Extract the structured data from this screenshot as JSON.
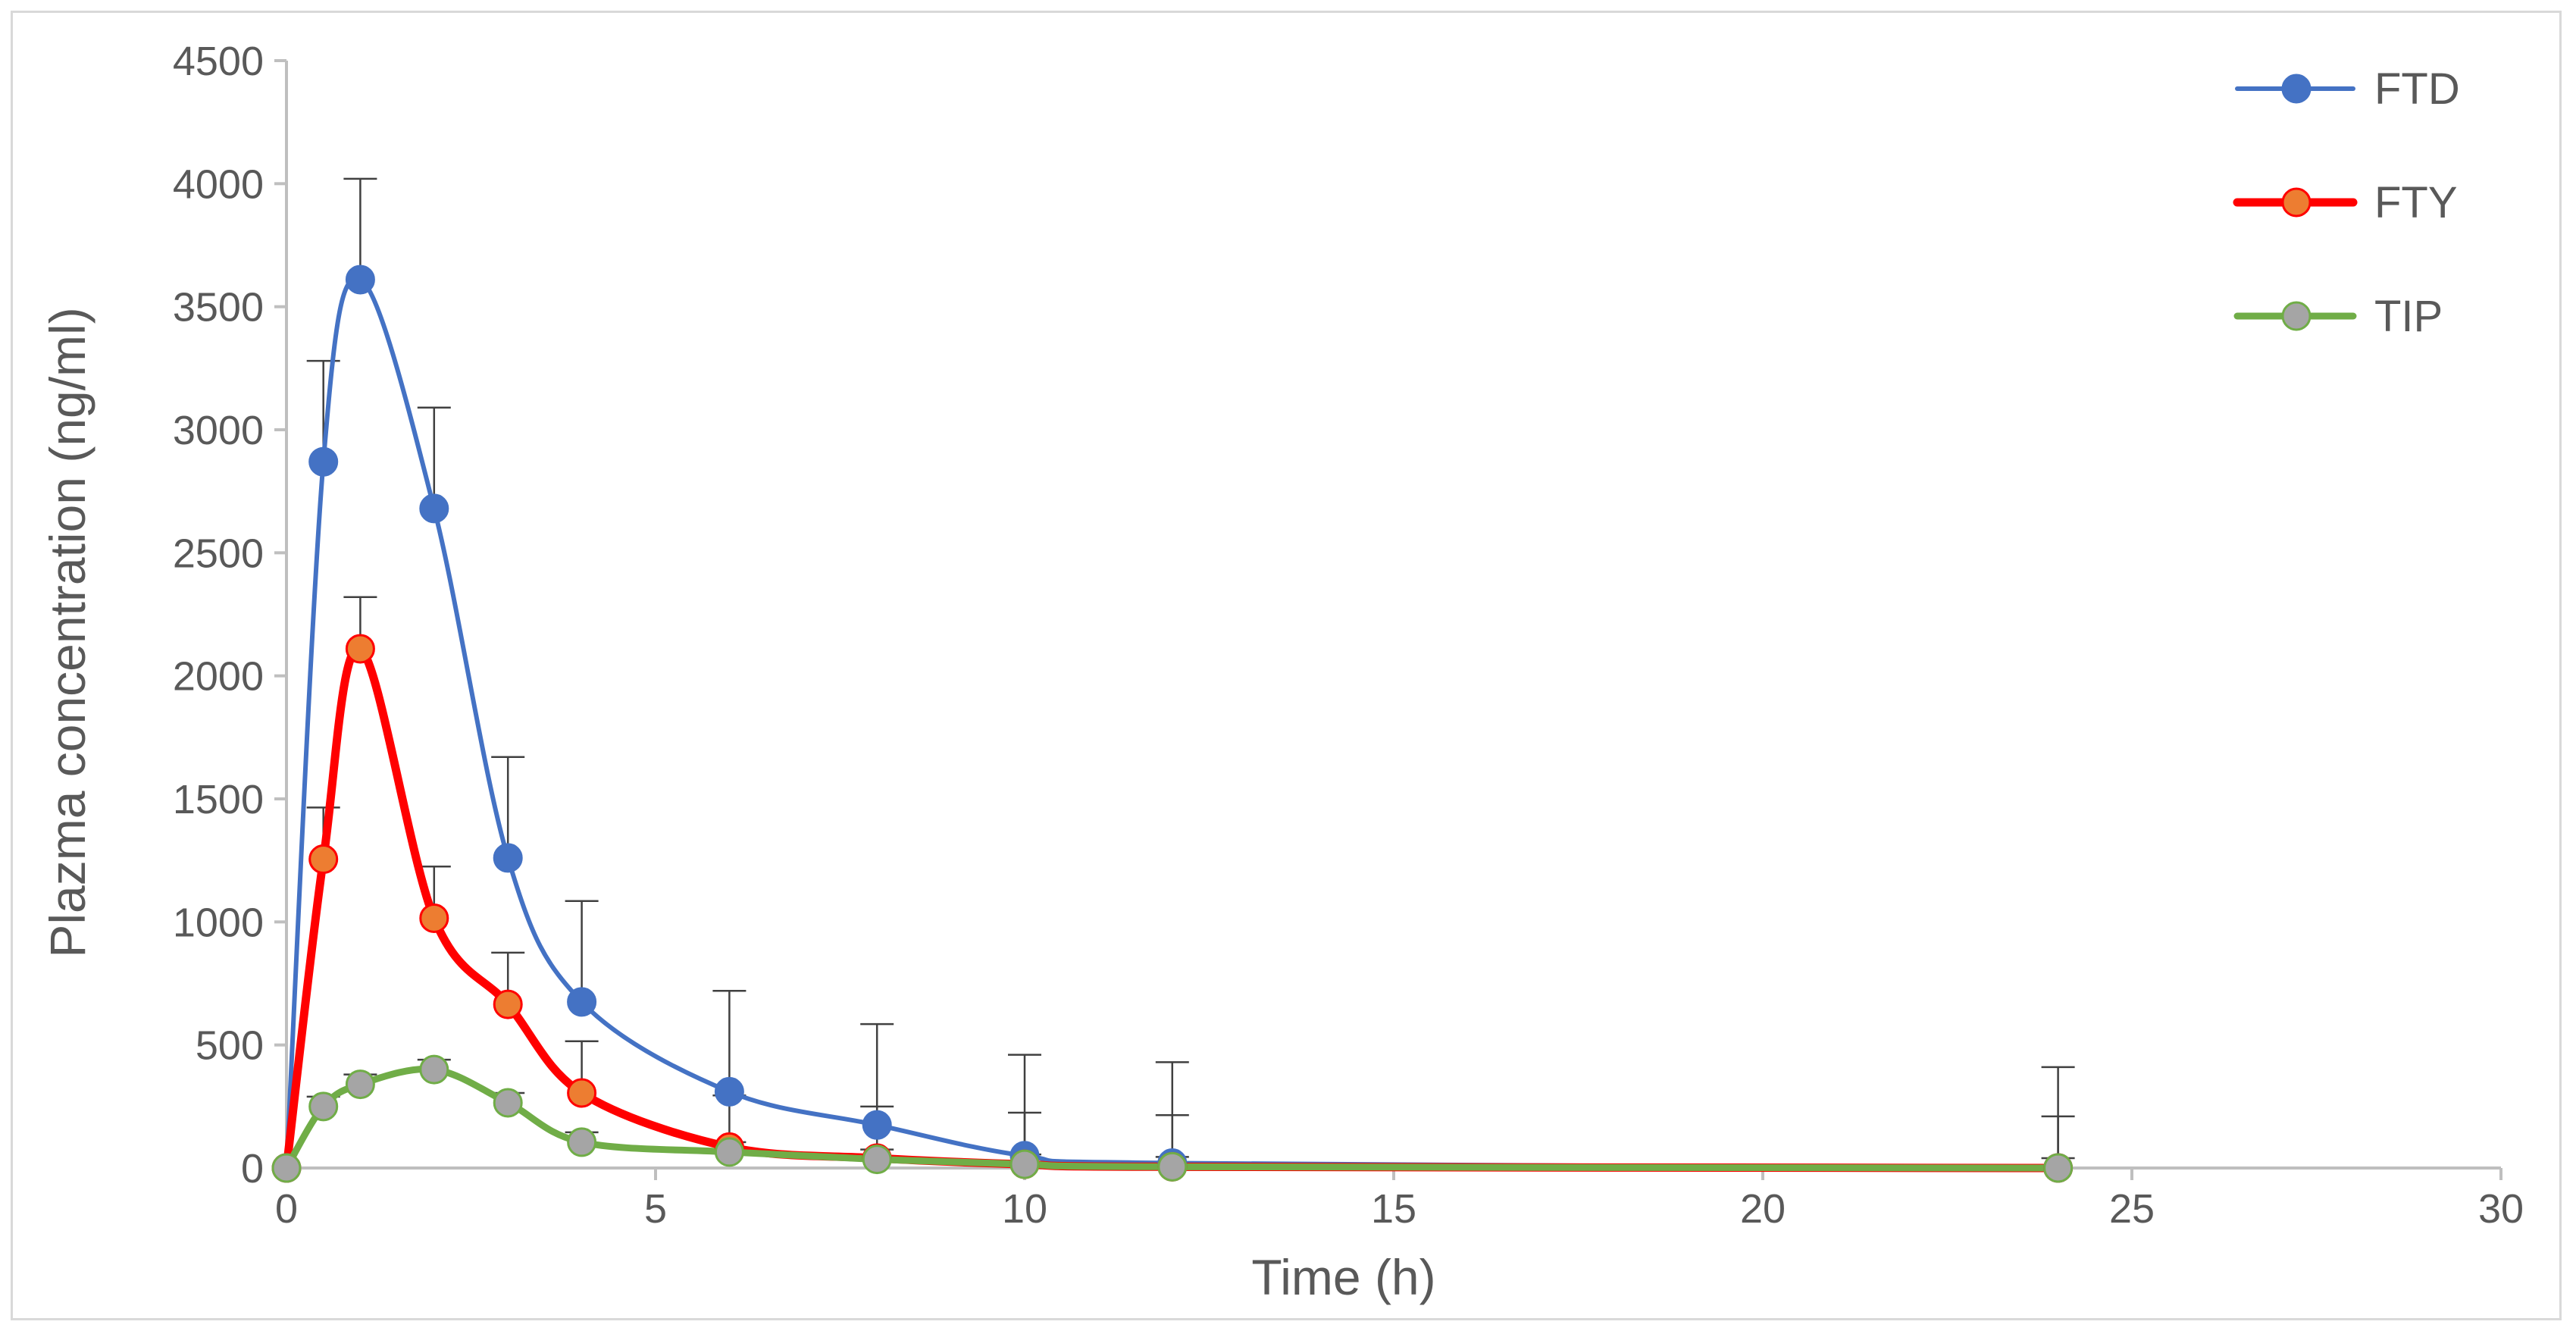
{
  "chart_data": {
    "type": "line",
    "title": "",
    "xlabel": "Time (h)",
    "ylabel": "Plazma concentration (ng/ml)",
    "xlim": [
      0,
      30
    ],
    "ylim": [
      0,
      4500
    ],
    "xticks": [
      0,
      5,
      10,
      15,
      20,
      25,
      30
    ],
    "yticks": [
      0,
      500,
      1000,
      1500,
      2000,
      2500,
      3000,
      3500,
      4000,
      4500
    ],
    "grid": false,
    "legend_position": "top-right",
    "x": [
      0,
      0.5,
      1,
      2,
      3,
      4,
      6,
      8,
      10,
      12,
      24
    ],
    "series": [
      {
        "name": "FTD",
        "color": "#4472c4",
        "marker_color": "#4472c4",
        "values": [
          0,
          2870,
          3610,
          2680,
          1260,
          675,
          310,
          175,
          50,
          20,
          0
        ],
        "errors": [
          0,
          410,
          410,
          410,
          410,
          410,
          410,
          410,
          410,
          410,
          410
        ]
      },
      {
        "name": "FTY",
        "color": "#ff0000",
        "marker_color": "#ed7d31",
        "values": [
          0,
          1255,
          2110,
          1015,
          665,
          305,
          85,
          40,
          15,
          5,
          0
        ],
        "errors": [
          0,
          210,
          210,
          210,
          210,
          210,
          210,
          210,
          210,
          210,
          210
        ]
      },
      {
        "name": "TIP",
        "color": "#70ad47",
        "marker_color": "#a5a5a5",
        "values": [
          0,
          250,
          340,
          400,
          265,
          105,
          65,
          35,
          15,
          5,
          0
        ],
        "errors": [
          0,
          40,
          40,
          40,
          40,
          40,
          40,
          40,
          40,
          40,
          40
        ]
      }
    ]
  }
}
